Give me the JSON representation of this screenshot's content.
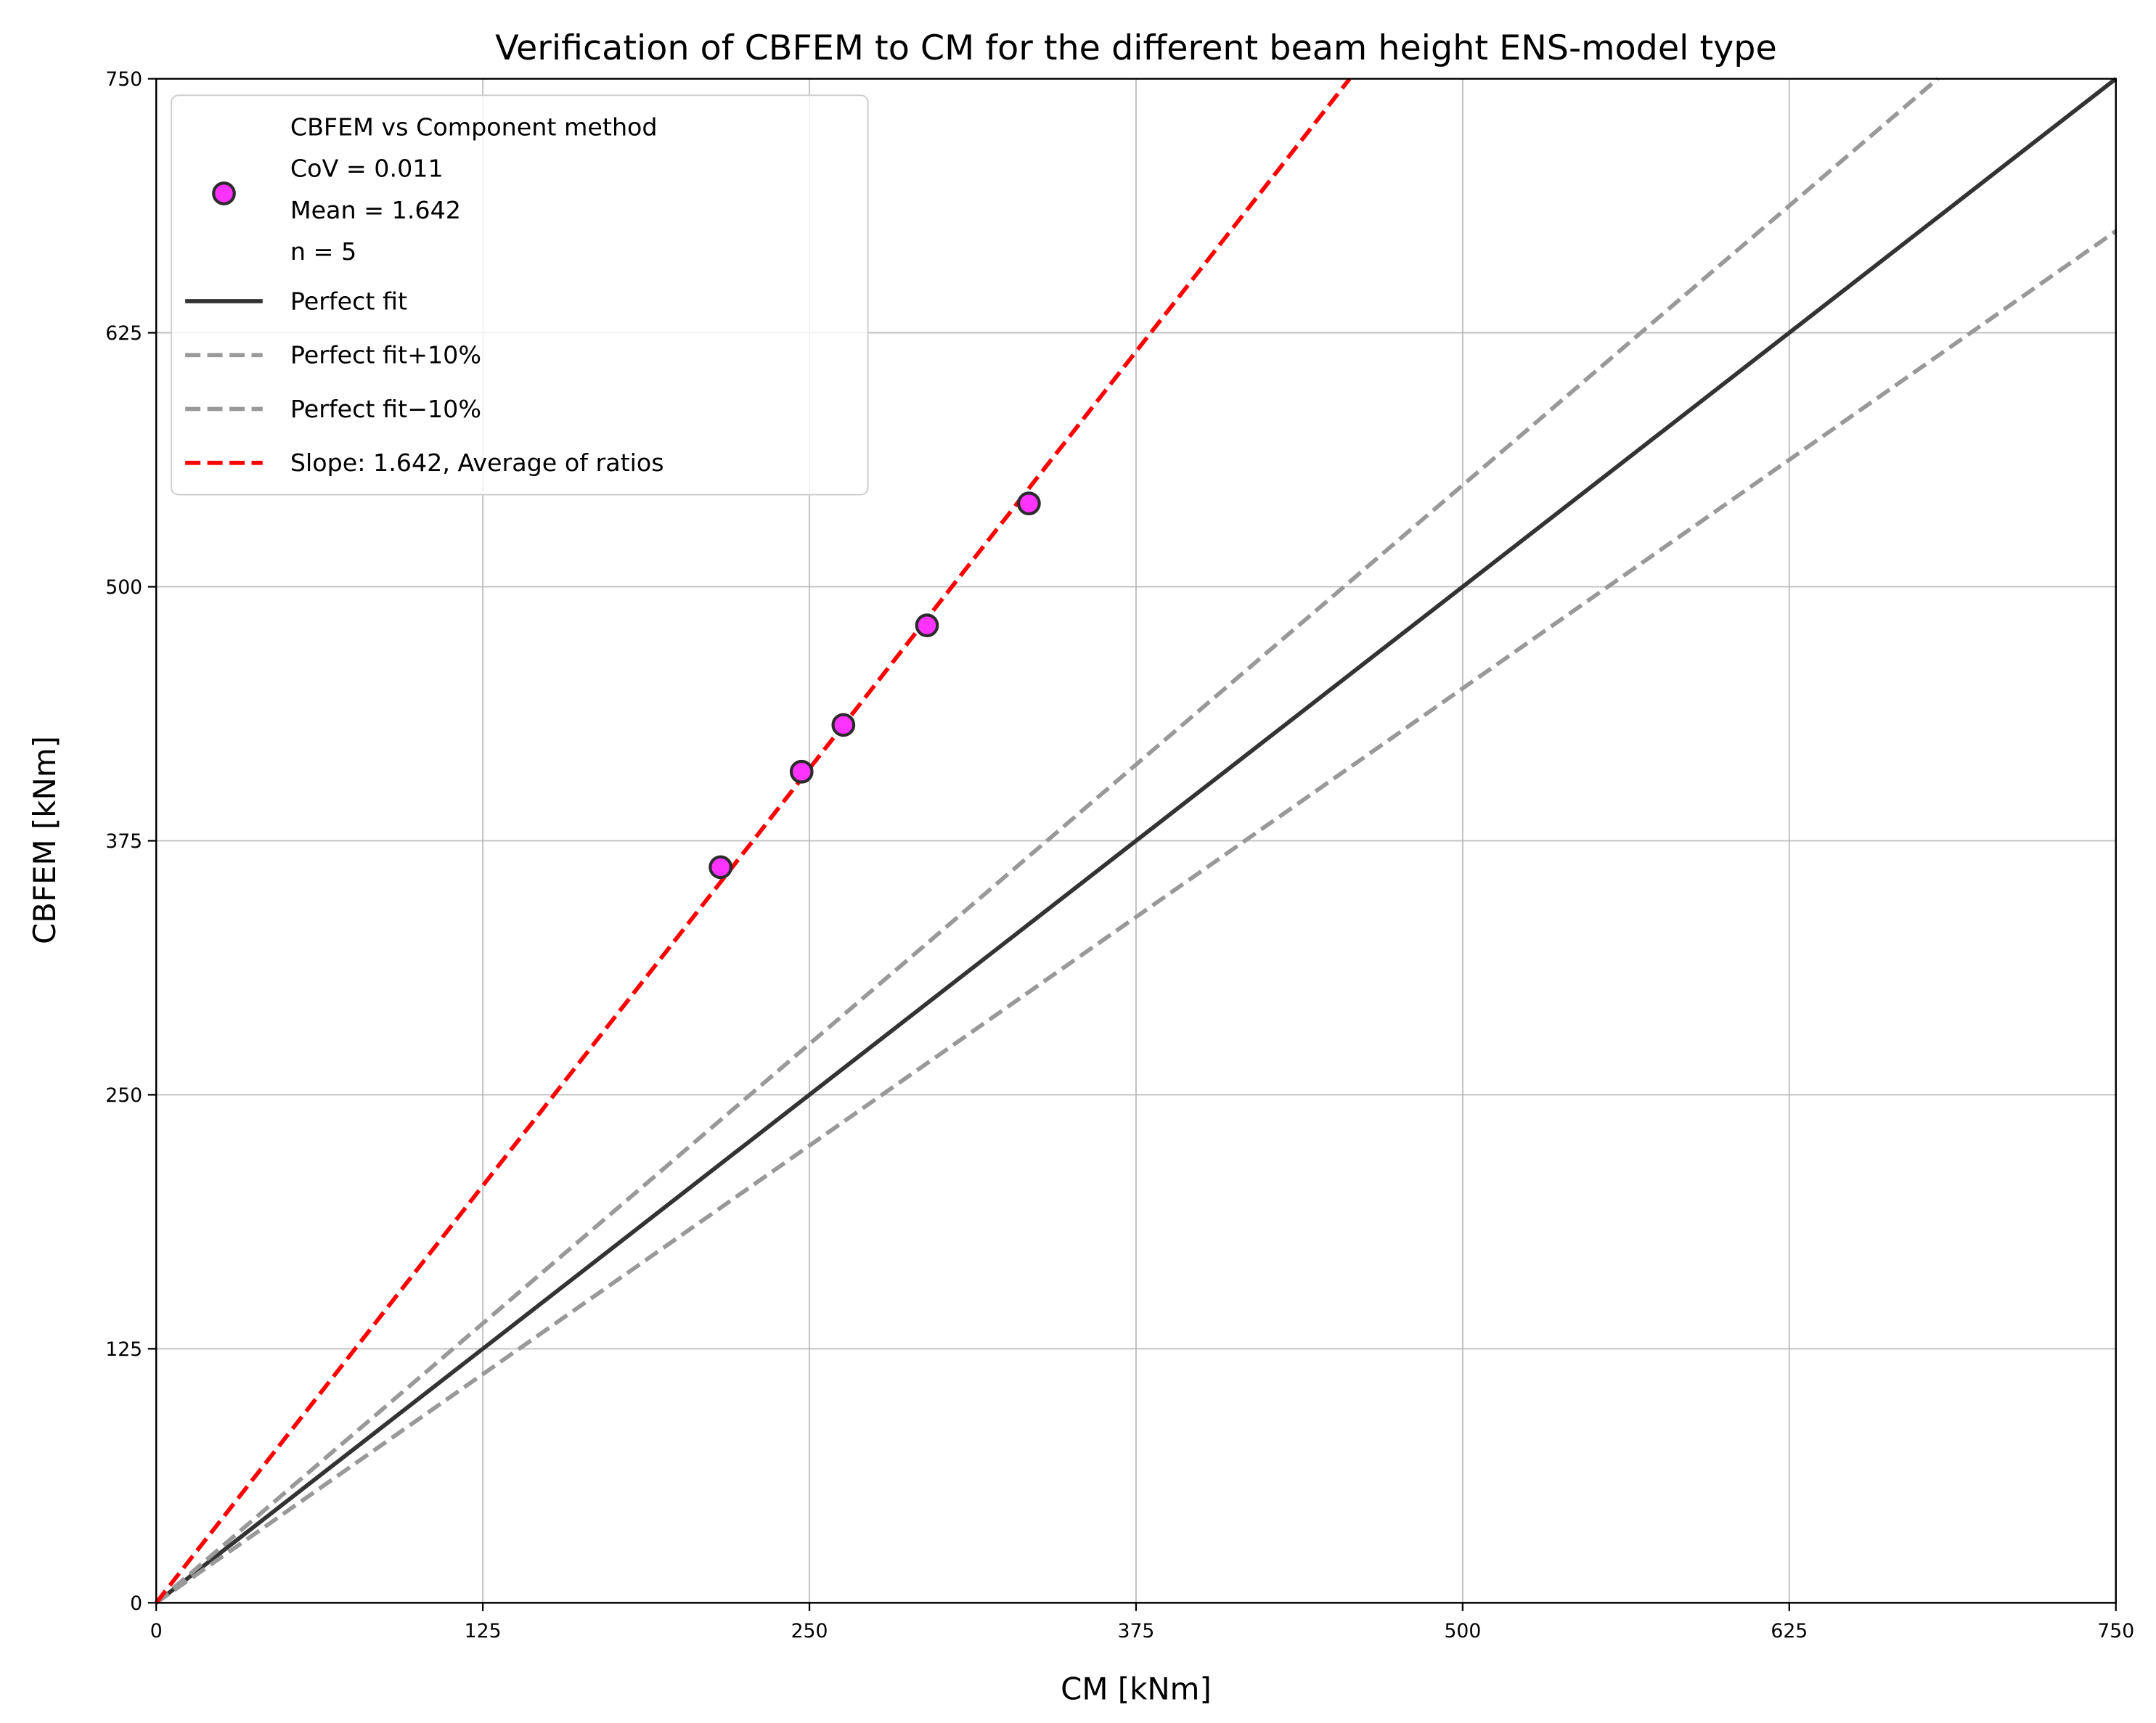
{
  "chart_data": {
    "type": "scatter",
    "title": "Verification of CBFEM to CM for the different beam height ENS-model type",
    "xlabel": "CM [kNm]",
    "ylabel": "CBFEM [kNm]",
    "xlim": [
      0,
      750
    ],
    "ylim": [
      0,
      750
    ],
    "xticks": [
      "0",
      "125",
      "250",
      "375",
      "500",
      "625",
      "750"
    ],
    "yticks": [
      "0",
      "125",
      "250",
      "375",
      "500",
      "625",
      "750"
    ],
    "grid": true,
    "legend_position": "top-left",
    "series": [
      {
        "name": "CBFEM vs Component method",
        "kind": "scatter",
        "color": "#ff33ff",
        "edge": "#2b2b2b",
        "x": [
          216,
          247,
          263,
          295,
          334
        ],
        "y": [
          362,
          409,
          432,
          481,
          541
        ]
      },
      {
        "name": "Perfect fit",
        "kind": "line",
        "slope": 1.0,
        "color": "#333333",
        "dash": "solid"
      },
      {
        "name": "Perfect fit+10%",
        "kind": "line",
        "slope": 1.1,
        "color": "#999999",
        "dash": "dashed"
      },
      {
        "name": "Perfect fit−10%",
        "kind": "line",
        "slope": 0.9,
        "color": "#999999",
        "dash": "dashed"
      },
      {
        "name": "Slope: 1.642, Average of ratios",
        "kind": "line",
        "slope": 1.642,
        "color": "#ff0000",
        "dash": "dashed"
      }
    ],
    "legend": {
      "scatter_lines": [
        "CBFEM vs Component method",
        "CoV = 0.011",
        "Mean = 1.642",
        "n = 5"
      ]
    }
  }
}
